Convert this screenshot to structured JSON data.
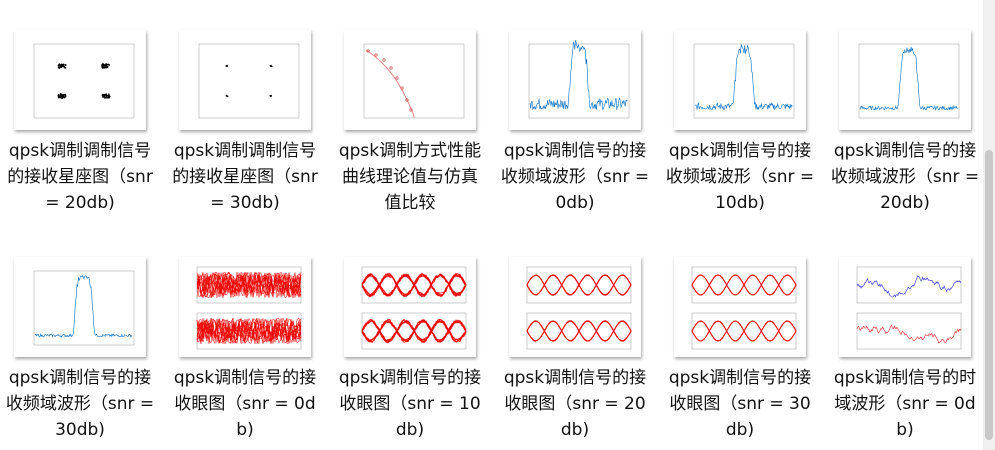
{
  "items": [
    {
      "caption": "qpsk调制调制信号的接收星座图（snr = 20db)"
    },
    {
      "caption": "qpsk调制调制信号的接收星座图（snr = 30db)"
    },
    {
      "caption": "qpsk调制方式性能曲线理论值与仿真值比较"
    },
    {
      "caption": "qpsk调制信号的接收频域波形（snr = 0db)"
    },
    {
      "caption": "qpsk调制信号的接收频域波形（snr = 10db)"
    },
    {
      "caption": "qpsk调制信号的接收频域波形（snr = 20db)"
    },
    {
      "caption": "qpsk调制信号的接收频域波形（snr = 30db)"
    },
    {
      "caption": "qpsk调制信号的接收眼图（snr = 0db)"
    },
    {
      "caption": "qpsk调制信号的接收眼图（snr = 10db)"
    },
    {
      "caption": "qpsk调制信号的接收眼图（snr = 20db)"
    },
    {
      "caption": "qpsk调制信号的接收眼图（snr = 30db)"
    },
    {
      "caption": "qpsk调制信号的时域波形（snr = 0db)"
    }
  ]
}
